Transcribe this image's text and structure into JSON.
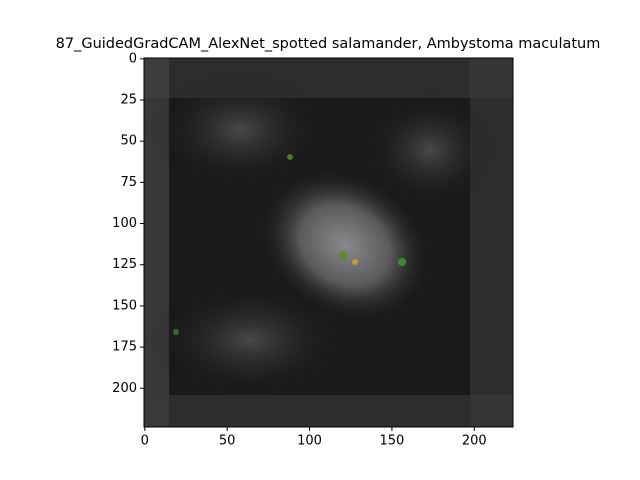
{
  "chart_data": {
    "type": "image",
    "title": "87_GuidedGradCAM_AlexNet_spotted salamander, Ambystoma maculatum",
    "xlim": [
      -0.5,
      223.5
    ],
    "xticks": [
      0,
      50,
      100,
      150,
      200
    ],
    "ylim": [
      223.5,
      -0.5
    ],
    "yticks": [
      0,
      25,
      50,
      75,
      100,
      125,
      150,
      175,
      200
    ]
  }
}
